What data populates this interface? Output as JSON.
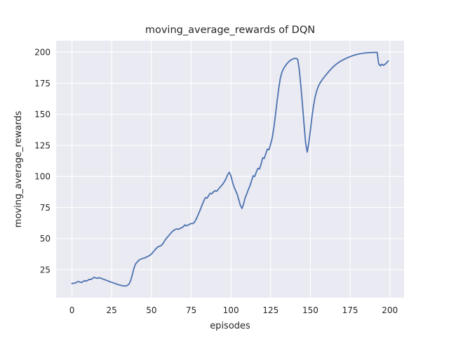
{
  "chart_data": {
    "type": "line",
    "title": "moving_average_rewards of DQN",
    "xlabel": "episodes",
    "ylabel": "moving_average_rewards",
    "x_ticks": [
      0,
      25,
      50,
      75,
      100,
      125,
      150,
      175,
      200
    ],
    "y_ticks": [
      25,
      50,
      75,
      100,
      125,
      150,
      175,
      200
    ],
    "xlim": [
      -9.95,
      208.95
    ],
    "ylim": [
      2.4,
      209.2
    ],
    "grid": true,
    "legend_position": "none",
    "colors": {
      "line": "#4c72b0",
      "plot_background": "#eaeaf2",
      "gridline": "#ffffff",
      "text": "#262626",
      "figure_background": "#ffffff"
    },
    "series": [
      {
        "name": "DQN",
        "x_start": 0,
        "x_step": 1,
        "values": [
          13.8,
          14.0,
          14.2,
          14.8,
          15.4,
          15.0,
          14.6,
          15.4,
          16.2,
          15.7,
          16.4,
          17.2,
          17.0,
          18.0,
          18.8,
          18.3,
          18.0,
          18.5,
          18.2,
          17.6,
          17.2,
          16.7,
          16.2,
          15.7,
          15.2,
          14.8,
          14.3,
          13.9,
          13.4,
          13.0,
          12.6,
          12.3,
          12.0,
          11.8,
          11.9,
          12.4,
          13.5,
          16.5,
          21.0,
          26.0,
          29.5,
          31.0,
          32.5,
          33.2,
          33.8,
          34.2,
          34.5,
          35.2,
          35.8,
          36.5,
          37.5,
          39.0,
          40.5,
          42.0,
          43.2,
          43.8,
          44.2,
          45.5,
          47.5,
          49.5,
          51.0,
          52.5,
          54.0,
          55.5,
          56.5,
          57.3,
          57.8,
          57.5,
          58.0,
          58.8,
          59.4,
          61.0,
          60.2,
          60.8,
          61.5,
          62.1,
          62.0,
          63.0,
          65.3,
          68.0,
          71.0,
          74.0,
          77.5,
          80.5,
          83.0,
          82.5,
          84.5,
          86.5,
          86.0,
          87.5,
          88.5,
          88.0,
          89.5,
          91.0,
          92.5,
          94.0,
          96.0,
          98.5,
          101.5,
          103.3,
          100.5,
          95.5,
          91.5,
          88.5,
          85.5,
          81.0,
          76.5,
          74.2,
          78.0,
          83.0,
          86.0,
          89.5,
          92.5,
          96.5,
          100.5,
          100.0,
          103.5,
          106.5,
          106.0,
          110.0,
          115.0,
          114.5,
          118.5,
          122.0,
          121.5,
          126.0,
          131.0,
          139.0,
          149.0,
          160.0,
          170.0,
          178.5,
          183.5,
          186.5,
          188.5,
          190.3,
          191.8,
          193.0,
          193.9,
          194.5,
          194.9,
          195.0,
          194.3,
          186.0,
          173.0,
          158.0,
          142.0,
          127.0,
          119.5,
          127.0,
          137.0,
          148.0,
          157.0,
          164.0,
          169.0,
          172.5,
          175.0,
          177.0,
          178.8,
          180.4,
          182.0,
          183.5,
          185.0,
          186.4,
          187.7,
          188.9,
          190.0,
          191.0,
          191.9,
          192.7,
          193.4,
          194.1,
          194.7,
          195.3,
          195.9,
          196.4,
          196.9,
          197.3,
          197.7,
          198.1,
          198.4,
          198.7,
          198.9,
          199.1,
          199.3,
          199.4,
          199.5,
          199.6,
          199.65,
          199.7,
          199.75,
          199.8,
          199.8,
          190.5,
          189.0,
          190.3,
          189.3,
          190.3,
          191.5,
          193.0
        ]
      }
    ]
  }
}
